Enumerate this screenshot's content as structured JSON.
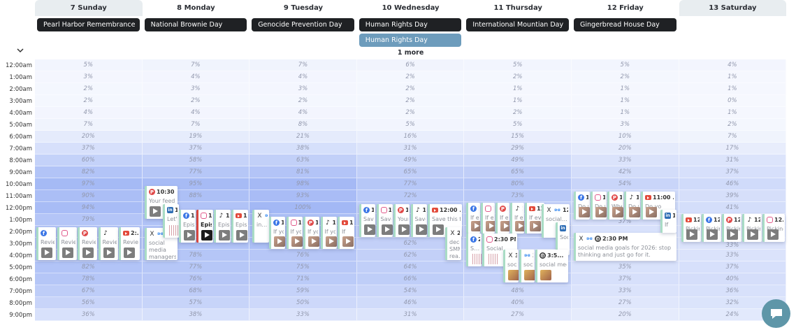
{
  "collapse_icon": "chevron-down-icon",
  "days": [
    {
      "label": "7 Sunday",
      "weekend": true,
      "events": [
        "Pearl Harbor Remembrance"
      ]
    },
    {
      "label": "8 Monday",
      "events": [
        "National Brownie Day"
      ]
    },
    {
      "label": "9 Tuesday",
      "events": [
        "Genocide Prevention Day"
      ]
    },
    {
      "label": "10 Wednesday",
      "events": [
        "Human Rights Day",
        "Human Rights Day"
      ],
      "more": "1 more"
    },
    {
      "label": "11 Thursday",
      "events": [
        "International Mountian Day"
      ]
    },
    {
      "label": "12 Friday",
      "events": [
        "Gingerbread House Day"
      ]
    },
    {
      "label": "13 Saturday",
      "weekend": true,
      "events": []
    }
  ],
  "colors": {
    "event_chip": "#1f2124",
    "event_chip_secondary": "#6d9cbc",
    "heat_low": "#f6f8fe",
    "heat_high": "#a3b8f5",
    "card_border": "#a9dcc5",
    "chat": "#5e96a8"
  },
  "times": [
    "12:00am",
    "1:00am",
    "2:00am",
    "3:00am",
    "4:00am",
    "5:00am",
    "6:00am",
    "7:00am",
    "8:00am",
    "9:00am",
    "10:00am",
    "11:00am",
    "12:00pm",
    "1:00pm",
    "2:00pm",
    "3:00pm",
    "4:00pm",
    "5:00pm",
    "6:00pm",
    "7:00pm",
    "8:00pm",
    "9:00pm"
  ],
  "engagement": [
    [
      5,
      3,
      2,
      2,
      4,
      7,
      20,
      37,
      60,
      82,
      97,
      90,
      94,
      79,
      null,
      null,
      null,
      82,
      78,
      67,
      56,
      36
    ],
    [
      7,
      4,
      3,
      2,
      4,
      7,
      19,
      37,
      58,
      77,
      95,
      88,
      null,
      null,
      null,
      null,
      78,
      77,
      76,
      68,
      57,
      38
    ],
    [
      7,
      4,
      3,
      2,
      4,
      8,
      21,
      38,
      63,
      81,
      98,
      93,
      100,
      null,
      null,
      null,
      76,
      75,
      71,
      59,
      50,
      33
    ],
    [
      6,
      2,
      2,
      2,
      2,
      5,
      16,
      31,
      49,
      65,
      77,
      72,
      null,
      null,
      null,
      62,
      62,
      64,
      66,
      54,
      46,
      31
    ],
    [
      5,
      2,
      1,
      1,
      2,
      5,
      15,
      29,
      49,
      65,
      80,
      73,
      null,
      null,
      null,
      null,
      null,
      null,
      null,
      48,
      40,
      27
    ],
    [
      5,
      2,
      1,
      1,
      1,
      3,
      10,
      20,
      33,
      42,
      54,
      null,
      null,
      37,
      null,
      null,
      null,
      35,
      37,
      33,
      27,
      20
    ],
    [
      4,
      1,
      1,
      0,
      1,
      2,
      7,
      17,
      31,
      37,
      46,
      39,
      41,
      null,
      null,
      33,
      33,
      37,
      40,
      36,
      32,
      24
    ]
  ],
  "post_groups": [
    {
      "day": "7 Sunday",
      "cards": [
        {
          "platforms": [
            "facebook"
          ],
          "time": "",
          "text": "Reviewi",
          "media": "video"
        },
        {
          "platforms": [
            "instagram"
          ],
          "time": "",
          "text": "Reviewi",
          "media": "video"
        },
        {
          "platforms": [
            "pinterest"
          ],
          "time": "",
          "text": "Reviewi",
          "media": "video"
        },
        {
          "platforms": [
            "tiktok"
          ],
          "time": "",
          "text": "Reviewi",
          "media": "video"
        },
        {
          "platforms": [
            "youtube"
          ],
          "time": "2:...",
          "text": "Review",
          "media": "video"
        }
      ]
    },
    {
      "day": "8 Monday",
      "cards": [
        {
          "platforms": [
            "pinterest"
          ],
          "time": "10:30 ...",
          "text": "Your feed",
          "media": "video"
        }
      ]
    },
    {
      "day": "8 Monday",
      "cards": [
        {
          "platforms": [
            "x",
            "bluesky"
          ],
          "time": "",
          "text": "social media managers? THIS IS...",
          "media": "none"
        }
      ]
    },
    {
      "day": "8 Monday",
      "cards": [
        {
          "platforms": [
            "linkedin"
          ],
          "time": "12:00",
          "text": "Let's s",
          "media": "chart"
        }
      ]
    },
    {
      "day": "8 Monday",
      "cards": [
        {
          "platforms": [
            "facebook"
          ],
          "time": "12",
          "text": "Episo",
          "media": "video"
        },
        {
          "platforms": [
            "instagram"
          ],
          "time": "12",
          "text": "Episo",
          "media": "video",
          "selected": true
        },
        {
          "platforms": [
            "tiktok"
          ],
          "time": "12",
          "text": "Episo",
          "media": "video"
        },
        {
          "platforms": [
            "youtube"
          ],
          "time": "1...",
          "text": "Episo",
          "media": "video"
        }
      ]
    },
    {
      "day": "9 Tuesday",
      "cards": [
        {
          "platforms": [
            "x",
            "bluesky"
          ],
          "time": "12:...",
          "text": "in 2026 social mana",
          "media": "none"
        }
      ]
    },
    {
      "day": "9 Tuesday",
      "cards": [
        {
          "platforms": [
            "facebook"
          ],
          "time": "1:",
          "text": "If you'",
          "media": "photo"
        },
        {
          "platforms": [
            "instagram"
          ],
          "time": "1:",
          "text": "If you'",
          "media": "photo"
        },
        {
          "platforms": [
            "pinterest"
          ],
          "time": "1:",
          "text": "If you'",
          "media": "photo"
        },
        {
          "platforms": [
            "tiktok"
          ],
          "time": "1:",
          "text": "If you'",
          "media": "photo"
        },
        {
          "platforms": [
            "youtube"
          ],
          "time": "1...",
          "text": "If",
          "media": "photo"
        }
      ]
    },
    {
      "day": "10 Wednesday",
      "cards": [
        {
          "platforms": [
            "facebook"
          ],
          "time": "12",
          "text": "Save t",
          "media": "video"
        },
        {
          "platforms": [
            "instagram"
          ],
          "time": "12",
          "text": "Save t",
          "media": "video"
        },
        {
          "platforms": [
            "pinterest"
          ],
          "time": "12",
          "text": "Your b",
          "media": "video"
        },
        {
          "platforms": [
            "tiktok"
          ],
          "time": "12",
          "text": "Save t",
          "media": "video"
        },
        {
          "platforms": [
            "youtube"
          ],
          "time": "12:00 ...",
          "text": "Save this for",
          "media": "video"
        }
      ]
    },
    {
      "day": "10 Wednesday",
      "cards": [
        {
          "platforms": [
            "x"
          ],
          "time": "2.",
          "text": "decer SMM rea...",
          "media": "none"
        }
      ]
    },
    {
      "day": "11 Thursday",
      "cards": [
        {
          "platforms": [
            "facebook"
          ],
          "time": "1:",
          "text": "If eve",
          "media": "photo"
        },
        {
          "platforms": [
            "instagram"
          ],
          "time": "1:",
          "text": "If eve",
          "media": "photo"
        },
        {
          "platforms": [
            "pinterest"
          ],
          "time": "1:",
          "text": "If eve",
          "media": "photo"
        },
        {
          "platforms": [
            "tiktok"
          ],
          "time": "1:",
          "text": "If eve",
          "media": "photo"
        },
        {
          "platforms": [
            "youtube"
          ],
          "time": "11:3...",
          "text": "If eve",
          "media": "photo"
        }
      ]
    },
    {
      "day": "11 Thursday",
      "cards": [
        {
          "platforms": [
            "x",
            "bluesky"
          ],
          "time": "12...",
          "text": "social media mana",
          "media": "none"
        }
      ]
    },
    {
      "day": "11 Thursday",
      "cards": [
        {
          "platforms": [
            "linkedin"
          ],
          "time": "1...",
          "text": "Soci",
          "media": "none"
        }
      ]
    },
    {
      "day": "11 Thursday",
      "cards": [
        {
          "platforms": [
            "facebook"
          ],
          "time": "2:",
          "text": "Social in 202",
          "media": "chart"
        },
        {
          "platforms": [
            "instagram"
          ],
          "time": "2:30 PM",
          "text": "Social media in 202",
          "media": "chart"
        }
      ]
    },
    {
      "day": "11 Thursday",
      "cards": [
        {
          "platforms": [
            "x"
          ],
          "time": "3:",
          "text": "social",
          "media": "img"
        },
        {
          "platforms": [
            "bluesky"
          ],
          "time": "3:",
          "text": "social",
          "media": "img"
        },
        {
          "platforms": [
            "threads"
          ],
          "time": "3:5...",
          "text": "social media",
          "media": "img"
        }
      ]
    },
    {
      "day": "12 Friday",
      "cards": [
        {
          "platforms": [
            "facebook"
          ],
          "time": "11",
          "text": "Do yo",
          "media": "photo"
        },
        {
          "platforms": [
            "instagram"
          ],
          "time": "11",
          "text": "Do yo",
          "media": "photo"
        },
        {
          "platforms": [
            "pinterest"
          ],
          "time": "11",
          "text": "When",
          "media": "photo"
        },
        {
          "platforms": [
            "tiktok"
          ],
          "time": "11",
          "text": "Do yo",
          "media": "photo"
        },
        {
          "platforms": [
            "youtube"
          ],
          "time": "11:00 ...",
          "text": "Do yo",
          "media": "photo"
        }
      ]
    },
    {
      "day": "12 Friday",
      "cards": [
        {
          "platforms": [
            "x",
            "bluesky",
            "threads"
          ],
          "time": "2:30 PM",
          "text": "social media goals for 2026: stop thinking and just go for it.",
          "media": "none"
        }
      ]
    },
    {
      "day": "12 Friday",
      "cards": [
        {
          "platforms": [
            "linkedin"
          ],
          "time": "1...",
          "text": "If",
          "media": "none"
        }
      ]
    },
    {
      "day": "13 Saturday",
      "cards": [
        {
          "platforms": [
            "youtube"
          ],
          "time": "12",
          "text": "Picking",
          "media": "video"
        },
        {
          "platforms": [
            "facebook"
          ],
          "time": "12",
          "text": "Picking",
          "media": "video"
        },
        {
          "platforms": [
            "pinterest"
          ],
          "time": "12",
          "text": "Picking",
          "media": "video"
        },
        {
          "platforms": [
            "tiktok"
          ],
          "time": "12",
          "text": "Picking",
          "media": "video"
        },
        {
          "platforms": [
            "instagram"
          ],
          "time": "12...",
          "text": "Picking",
          "media": "video"
        }
      ]
    }
  ],
  "chat_button": "chat-icon"
}
